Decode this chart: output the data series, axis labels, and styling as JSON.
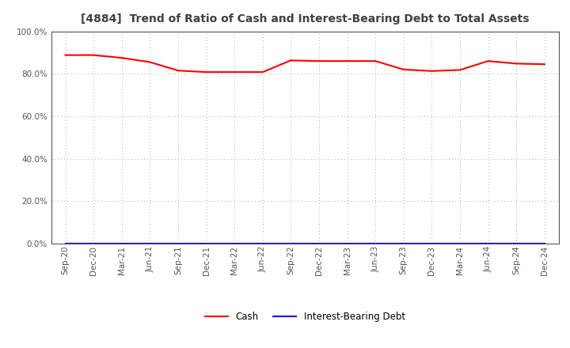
{
  "title": "[4884]  Trend of Ratio of Cash and Interest-Bearing Debt to Total Assets",
  "title_fontsize": 10,
  "title_color": "#404040",
  "background_color": "#ffffff",
  "x_labels": [
    "Sep-20",
    "Dec-20",
    "Mar-21",
    "Jun-21",
    "Sep-21",
    "Dec-21",
    "Mar-22",
    "Jun-22",
    "Sep-22",
    "Dec-22",
    "Mar-23",
    "Jun-23",
    "Sep-23",
    "Dec-23",
    "Mar-24",
    "Jun-24",
    "Sep-24",
    "Dec-24"
  ],
  "cash_values": [
    0.888,
    0.888,
    0.875,
    0.855,
    0.815,
    0.808,
    0.808,
    0.808,
    0.863,
    0.86,
    0.86,
    0.86,
    0.82,
    0.813,
    0.818,
    0.86,
    0.848,
    0.845
  ],
  "debt_values": [
    0.0,
    0.0,
    0.0,
    0.0,
    0.0,
    0.0,
    0.0,
    0.0,
    0.0,
    0.0,
    0.0,
    0.0,
    0.0,
    0.0,
    0.0,
    0.0,
    0.0,
    0.0
  ],
  "cash_color": "#ff0000",
  "debt_color": "#0000ff",
  "cash_label": "Cash",
  "debt_label": "Interest-Bearing Debt",
  "ylim": [
    0.0,
    1.0
  ],
  "yticks": [
    0.0,
    0.2,
    0.4,
    0.6,
    0.8,
    1.0
  ],
  "grid_color": "#aaaaaa",
  "line_width": 1.5,
  "legend_fontsize": 8.5,
  "tick_fontsize": 7.5,
  "axis_color": "#555555"
}
